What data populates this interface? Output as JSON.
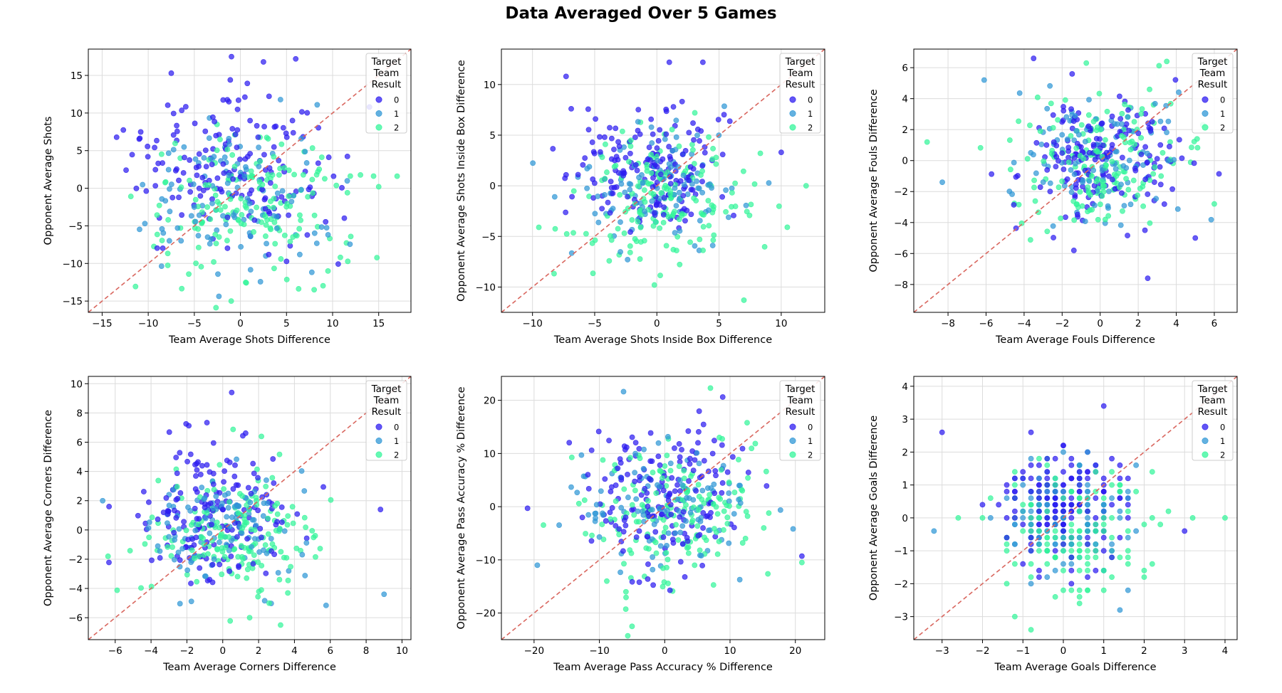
{
  "figure": {
    "title": "Data Averaged Over 5 Games"
  },
  "chart_data": [
    {
      "type": "scatter",
      "xlabel": "Team Average Shots Difference",
      "ylabel": "Opponent Average Shots",
      "xlim": [
        -16.5,
        18.5
      ],
      "ylim": [
        -16.5,
        18.5
      ],
      "xticks": [
        -15,
        -10,
        -5,
        0,
        5,
        10,
        15
      ],
      "yticks": [
        -15,
        -10,
        -5,
        0,
        5,
        10,
        15
      ],
      "grid": true,
      "diagonal": true,
      "legend": {
        "title": [
          "Target",
          "Team",
          "Result"
        ],
        "entries": [
          "0",
          "1",
          "2"
        ],
        "placement": "top-right"
      },
      "series": [
        {
          "name": "0",
          "color": "#2d1cf0",
          "cx": -1,
          "cy": 3,
          "sx": 5,
          "sy": 5,
          "n": 170,
          "seed": 11,
          "points": [
            [
              6,
              17.2
            ],
            [
              2.5,
              16.8
            ],
            [
              -7.5,
              15.3
            ],
            [
              14,
              10.8
            ]
          ]
        },
        {
          "name": "1",
          "color": "#2f97d6",
          "cx": 0,
          "cy": 0,
          "sx": 5,
          "sy": 5,
          "n": 110,
          "seed": 12,
          "points": []
        },
        {
          "name": "2",
          "color": "#33f59a",
          "cx": 1,
          "cy": -2.5,
          "sx": 5.2,
          "sy": 5,
          "n": 170,
          "seed": 13,
          "points": [
            [
              -1,
              -15
            ],
            [
              8,
              -13.5
            ],
            [
              17,
              1.6
            ],
            [
              15,
              0.2
            ],
            [
              9.5,
              -11
            ]
          ]
        }
      ]
    },
    {
      "type": "scatter",
      "xlabel": "Team Average Shots Inside Box Difference",
      "ylabel": "Opponent Average Shots Inside Box Difference",
      "xlim": [
        -12.5,
        13.5
      ],
      "ylim": [
        -12.5,
        13.5
      ],
      "xticks": [
        -10,
        -5,
        0,
        5,
        10
      ],
      "yticks": [
        -10,
        -5,
        0,
        5,
        10
      ],
      "grid": true,
      "diagonal": true,
      "legend": {
        "title": [
          "Target",
          "Team",
          "Result"
        ],
        "entries": [
          "0",
          "1",
          "2"
        ],
        "placement": "top-right"
      },
      "series": [
        {
          "name": "0",
          "color": "#2d1cf0",
          "cx": -0.5,
          "cy": 1.5,
          "sx": 3.2,
          "sy": 3.2,
          "n": 170,
          "seed": 21,
          "points": [
            [
              1,
              12.2
            ],
            [
              3.7,
              12.2
            ],
            [
              -7.3,
              10.8
            ],
            [
              10,
              3.3
            ]
          ]
        },
        {
          "name": "1",
          "color": "#2f97d6",
          "cx": 0,
          "cy": 0,
          "sx": 3.2,
          "sy": 3.2,
          "n": 110,
          "seed": 22,
          "points": []
        },
        {
          "name": "2",
          "color": "#33f59a",
          "cx": 0.5,
          "cy": -1.5,
          "sx": 3.4,
          "sy": 3.2,
          "n": 170,
          "seed": 23,
          "points": [
            [
              7,
              -11.3
            ],
            [
              12,
              0
            ],
            [
              -0.2,
              -9.8
            ]
          ]
        }
      ]
    },
    {
      "type": "scatter",
      "xlabel": "Team Average Fouls Difference",
      "ylabel": "Opponent Average Fouls Difference",
      "xlim": [
        -9.8,
        7.2
      ],
      "ylim": [
        -9.8,
        7.2
      ],
      "xticks": [
        -8,
        -6,
        -4,
        -2,
        0,
        2,
        4,
        6
      ],
      "yticks": [
        -8,
        -6,
        -4,
        -2,
        0,
        2,
        4,
        6
      ],
      "grid": true,
      "diagonal": true,
      "legend": {
        "title": [
          "Target",
          "Team",
          "Result"
        ],
        "entries": [
          "0",
          "1",
          "2"
        ],
        "placement": "top-right"
      },
      "series": [
        {
          "name": "0",
          "color": "#2d1cf0",
          "cx": 0,
          "cy": 0,
          "sx": 2,
          "sy": 2.2,
          "n": 170,
          "seed": 31,
          "points": [
            [
              -3.5,
              6.6
            ],
            [
              2.5,
              -7.6
            ],
            [
              5,
              -5
            ]
          ]
        },
        {
          "name": "1",
          "color": "#2f97d6",
          "cx": 0,
          "cy": 0,
          "sx": 2,
          "sy": 2.2,
          "n": 110,
          "seed": 32,
          "points": [
            [
              -8.3,
              -1.4
            ],
            [
              -6.1,
              5.2
            ]
          ]
        },
        {
          "name": "2",
          "color": "#33f59a",
          "cx": 0,
          "cy": 0,
          "sx": 2.1,
          "sy": 2.2,
          "n": 170,
          "seed": 33,
          "points": [
            [
              -9.1,
              1.2
            ],
            [
              3.5,
              6.4
            ],
            [
              6,
              -2.8
            ]
          ]
        }
      ]
    },
    {
      "type": "scatter",
      "xlabel": "Team Average Corners Difference",
      "ylabel": "Opponent Average Corners Difference",
      "xlim": [
        -7.5,
        10.5
      ],
      "ylim": [
        -7.5,
        10.5
      ],
      "xticks": [
        -6,
        -4,
        -2,
        0,
        2,
        4,
        6,
        8,
        10
      ],
      "yticks": [
        -6,
        -4,
        -2,
        0,
        2,
        4,
        6,
        8,
        10
      ],
      "grid": true,
      "diagonal": true,
      "legend": {
        "title": [
          "Target",
          "Team",
          "Result"
        ],
        "entries": [
          "0",
          "1",
          "2"
        ],
        "placement": "top-right"
      },
      "series": [
        {
          "name": "0",
          "color": "#2d1cf0",
          "cx": -0.5,
          "cy": 1,
          "sx": 2.2,
          "sy": 2.4,
          "n": 170,
          "seed": 41,
          "points": [
            [
              0.5,
              9.4
            ],
            [
              8.8,
              1.4
            ]
          ]
        },
        {
          "name": "1",
          "color": "#2f97d6",
          "cx": 0,
          "cy": 0,
          "sx": 2.2,
          "sy": 2.2,
          "n": 110,
          "seed": 42,
          "points": [
            [
              -6.7,
              2
            ],
            [
              9,
              -4.4
            ]
          ]
        },
        {
          "name": "2",
          "color": "#33f59a",
          "cx": 0.7,
          "cy": -0.8,
          "sx": 2.3,
          "sy": 2.2,
          "n": 170,
          "seed": 43,
          "points": [
            [
              -6.4,
              -1.8
            ],
            [
              1.5,
              -6
            ]
          ]
        }
      ]
    },
    {
      "type": "scatter",
      "xlabel": "Team Average Pass Accuracy % Difference",
      "ylabel": "Opponent Average Pass Accuracy % Difference",
      "xlim": [
        -25,
        24.5
      ],
      "ylim": [
        -25,
        24.5
      ],
      "xticks": [
        -20,
        -10,
        0,
        10,
        20
      ],
      "yticks": [
        -20,
        -10,
        0,
        10,
        20
      ],
      "grid": true,
      "diagonal": true,
      "legend": {
        "title": [
          "Target",
          "Team",
          "Result"
        ],
        "entries": [
          "0",
          "1",
          "2"
        ],
        "placement": "top-right"
      },
      "series": [
        {
          "name": "0",
          "color": "#2d1cf0",
          "cx": -1,
          "cy": 2,
          "sx": 6.5,
          "sy": 6.5,
          "n": 170,
          "seed": 51,
          "points": [
            [
              -21,
              -0.3
            ],
            [
              21,
              -9.3
            ]
          ]
        },
        {
          "name": "1",
          "color": "#2f97d6",
          "cx": 0,
          "cy": 0,
          "sx": 6.5,
          "sy": 6.5,
          "n": 110,
          "seed": 52,
          "points": [
            [
              -19.5,
              -11
            ]
          ]
        },
        {
          "name": "2",
          "color": "#33f59a",
          "cx": 1.5,
          "cy": -2,
          "sx": 6.8,
          "sy": 6.5,
          "n": 170,
          "seed": 53,
          "points": [
            [
              7,
              22.3
            ],
            [
              -5,
              -22.5
            ],
            [
              21,
              -10.5
            ]
          ]
        }
      ]
    },
    {
      "type": "scatter",
      "xlabel": "Team Average Goals Difference",
      "ylabel": "Opponent Average Goals Difference",
      "xlim": [
        -3.7,
        4.3
      ],
      "ylim": [
        -3.7,
        4.3
      ],
      "xticks": [
        -3,
        -2,
        -1,
        0,
        1,
        2,
        3,
        4
      ],
      "yticks": [
        -3,
        -2,
        -1,
        0,
        1,
        2,
        3,
        4
      ],
      "grid": true,
      "diagonal": true,
      "grid_step": 0.2,
      "legend": {
        "title": [
          "Target",
          "Team",
          "Result"
        ],
        "entries": [
          "0",
          "1",
          "2"
        ],
        "placement": "top-right"
      },
      "series": [
        {
          "name": "0",
          "color": "#2d1cf0",
          "cx": -0.1,
          "cy": 0.3,
          "sx": 0.85,
          "sy": 0.85,
          "n": 170,
          "seed": 61,
          "points": [
            [
              1,
              3.4
            ],
            [
              -3,
              2.6
            ],
            [
              3,
              -0.4
            ]
          ]
        },
        {
          "name": "1",
          "color": "#2f97d6",
          "cx": 0,
          "cy": 0,
          "sx": 0.85,
          "sy": 0.85,
          "n": 110,
          "seed": 62,
          "points": [
            [
              1.4,
              -2.8
            ],
            [
              -3.2,
              -0.4
            ]
          ]
        },
        {
          "name": "2",
          "color": "#33f59a",
          "cx": 0.1,
          "cy": -0.3,
          "sx": 0.9,
          "sy": 0.85,
          "n": 170,
          "seed": 63,
          "points": [
            [
              4,
              0
            ],
            [
              -0.8,
              -3.4
            ],
            [
              3.2,
              0
            ]
          ]
        }
      ]
    }
  ]
}
